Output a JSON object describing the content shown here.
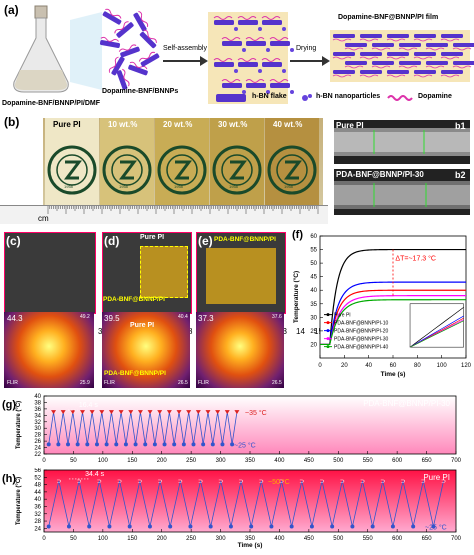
{
  "panel_a": {
    "letter": "(a)",
    "flask_label": "Dopamine-BNF/BNNP/PI/DMF",
    "particles_label": "Dopamine-BNF/BNNPs",
    "self_assembly_label": "Self-assembly",
    "drying_label": "Drying",
    "film_label": "Dopamine-BNF@BNNP/PI film",
    "legend": {
      "flake": "h-BN flake",
      "nano": "h-BN nanoparticles",
      "dopamine": "Dopamine"
    }
  },
  "panel_b": {
    "letter": "(b)",
    "samples": [
      "Pure PI",
      "10 wt.%",
      "20 wt.%",
      "30 wt.%",
      "40 wt.%"
    ],
    "ruler_unit": "cm",
    "ruler_numbers": [
      "1",
      "2",
      "3",
      "4",
      "5",
      "6",
      "7",
      "8",
      "9",
      "10",
      "11",
      "12",
      "13",
      "14",
      "15"
    ],
    "seal_year": "1958",
    "b1_label": "Pure PI",
    "b1_tag": "b1",
    "b2_label": "PDA-BNF@BNNP/PI-30",
    "b2_tag": "b2"
  },
  "panel_c": {
    "letter": "(c)",
    "temp_top": "44.3",
    "temp_max": "49.2",
    "temp_min": "25.9",
    "flir": "FLIR"
  },
  "panel_d": {
    "letter": "(d)",
    "label_top": "Pure PI",
    "label_bottom": "PDA-BNF@BNNP/PI",
    "ir_top": "Pure PI",
    "ir_bottom": "PDA-BNF@BNNP/PI",
    "temp_top": "39.5",
    "temp_max": "40.4",
    "temp_min": "26.5",
    "flir": "FLIR"
  },
  "panel_e": {
    "letter": "(e)",
    "label": "PDA-BNF@BNNP/PI",
    "temp_top": "37.3",
    "temp_max": "37.6",
    "temp_min": "26.5",
    "flir": "FLIR"
  },
  "chart_data": [
    {
      "id": "f",
      "letter": "(f)",
      "type": "line",
      "xlabel": "Time (s)",
      "ylabel": "Temperature (°C)",
      "xlim": [
        0,
        120
      ],
      "ylim": [
        15,
        60
      ],
      "xticks": [
        "0",
        "20",
        "40",
        "60",
        "80",
        "100",
        "120"
      ],
      "yticks": [
        "20",
        "25",
        "30",
        "35",
        "40",
        "45",
        "50",
        "55",
        "60"
      ],
      "annotation": "ΔT=~17.3 °C",
      "colors": {
        "Pure PI": "#000000",
        "PDA-BNF@BNNP/PI-10": "#ff0000",
        "PDA-BNF@BNNP/PI-20": "#0000ff",
        "PDA-BNF@BNNP/PI-30": "#ff00ff",
        "PDA-BNF@BNNP/PI-40": "#00aa00"
      },
      "series": [
        {
          "name": "Pure PI",
          "plateau": 55,
          "tau": 6
        },
        {
          "name": "PDA-BNF@BNNP/PI-10",
          "plateau": 40,
          "tau": 7
        },
        {
          "name": "PDA-BNF@BNNP/PI-20",
          "plateau": 43,
          "tau": 7
        },
        {
          "name": "PDA-BNF@BNNP/PI-30",
          "plateau": 38,
          "tau": 8
        },
        {
          "name": "PDA-BNF@BNNP/PI-40",
          "plateau": 36.5,
          "tau": 8
        }
      ]
    },
    {
      "id": "g",
      "letter": "(g)",
      "type": "line",
      "title": "PDA-BNF@BNNP/PI-30",
      "xlabel": "",
      "ylabel": "Temperature (°C)",
      "xlim": [
        0,
        700
      ],
      "ylim": [
        22,
        40
      ],
      "xticks": [
        "0",
        "50",
        "100",
        "150",
        "200",
        "250",
        "300",
        "350",
        "400",
        "450",
        "500",
        "550",
        "600",
        "650",
        "700"
      ],
      "yticks": [
        "22",
        "24",
        "26",
        "28",
        "30",
        "32",
        "34",
        "36",
        "38",
        "40"
      ],
      "period_label": "16.4 s",
      "high_label": "~35 °C",
      "low_label": "~25 °C",
      "cycle_period": 16.4,
      "high": 35,
      "low": 25,
      "x_end": 320,
      "color": "#3355cc",
      "high_marker_color": "#dd2222"
    },
    {
      "id": "h",
      "letter": "(h)",
      "type": "line",
      "title": "Pure PI",
      "xlabel": "Time (s)",
      "ylabel": "Temperature (°C)",
      "xlim": [
        0,
        700
      ],
      "ylim": [
        22,
        56
      ],
      "xticks": [
        "0",
        "50",
        "100",
        "150",
        "200",
        "250",
        "300",
        "350",
        "400",
        "450",
        "500",
        "550",
        "600",
        "650",
        "700"
      ],
      "yticks": [
        "24",
        "28",
        "32",
        "36",
        "40",
        "44",
        "48",
        "52",
        "56"
      ],
      "period_label": "34.4 s",
      "high_label": "~50 °C",
      "low_label": "~25 °C",
      "cycle_period": 34.4,
      "high": 50,
      "low": 25,
      "x_end": 690,
      "color": "#3355cc",
      "high_marker_color": "#ffaa00"
    }
  ]
}
